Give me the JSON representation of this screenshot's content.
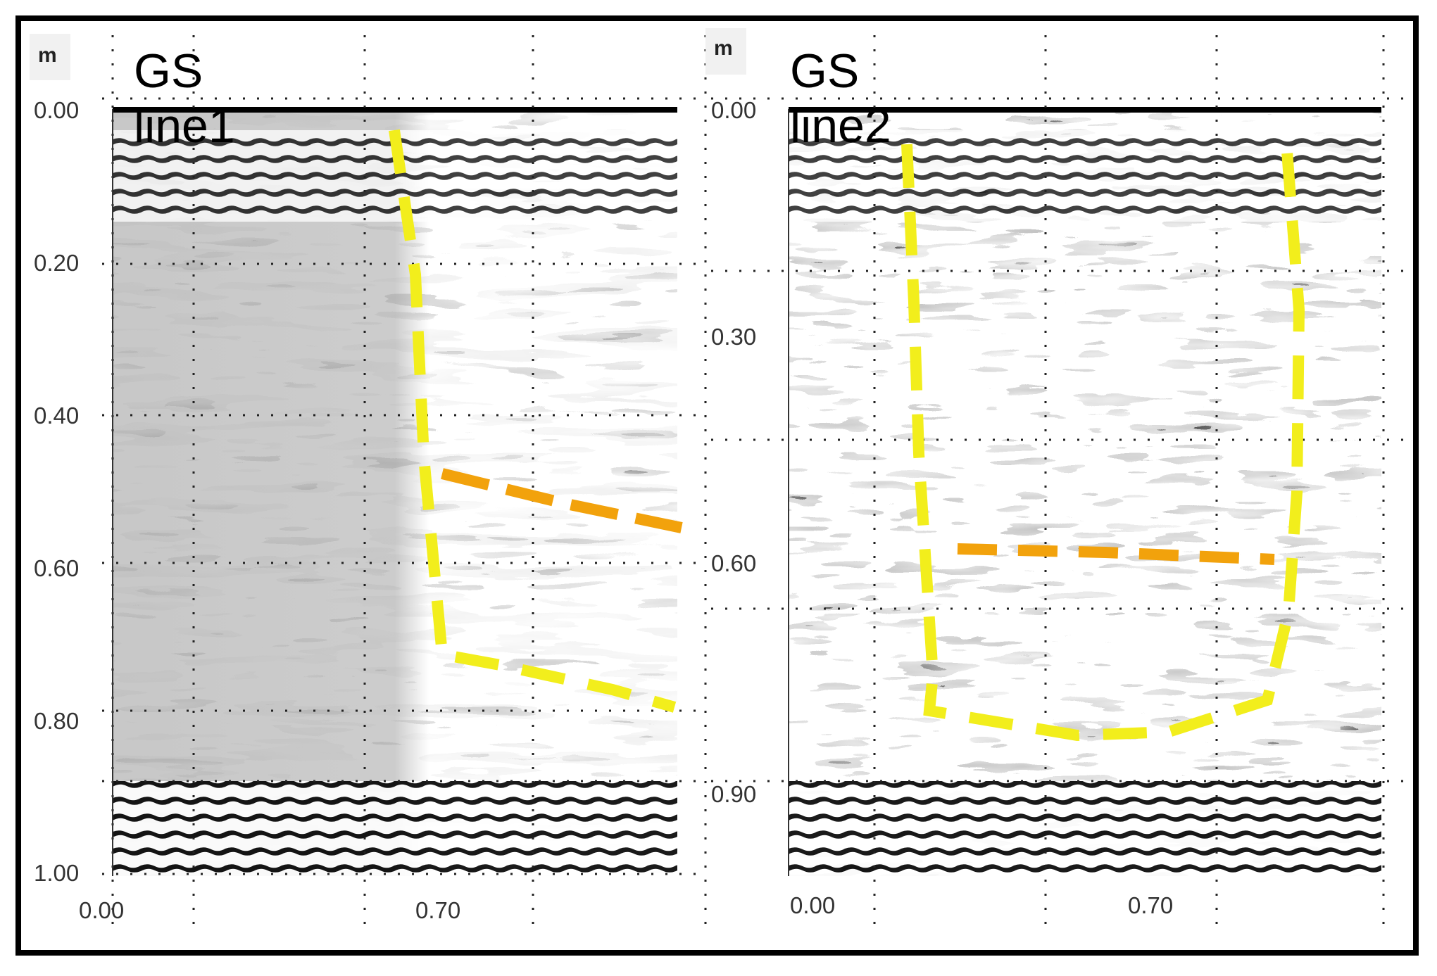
{
  "panels": [
    {
      "title": "GS line1",
      "unit": "m",
      "y_ticks": [
        "0.00",
        "0.20",
        "0.40",
        "0.60",
        "0.80",
        "1.00"
      ],
      "x_ticks": [
        "0.00",
        "0.70"
      ]
    },
    {
      "title": "GS line2",
      "unit": "m",
      "y_ticks": [
        "0.00",
        "0.30",
        "0.60",
        "0.90"
      ],
      "x_ticks": [
        "0.00",
        "0.70"
      ]
    }
  ],
  "colors": {
    "boundary_yellow": "#f2ee1c",
    "boundary_orange": "#f2a20c",
    "radargram": "grayscale"
  }
}
